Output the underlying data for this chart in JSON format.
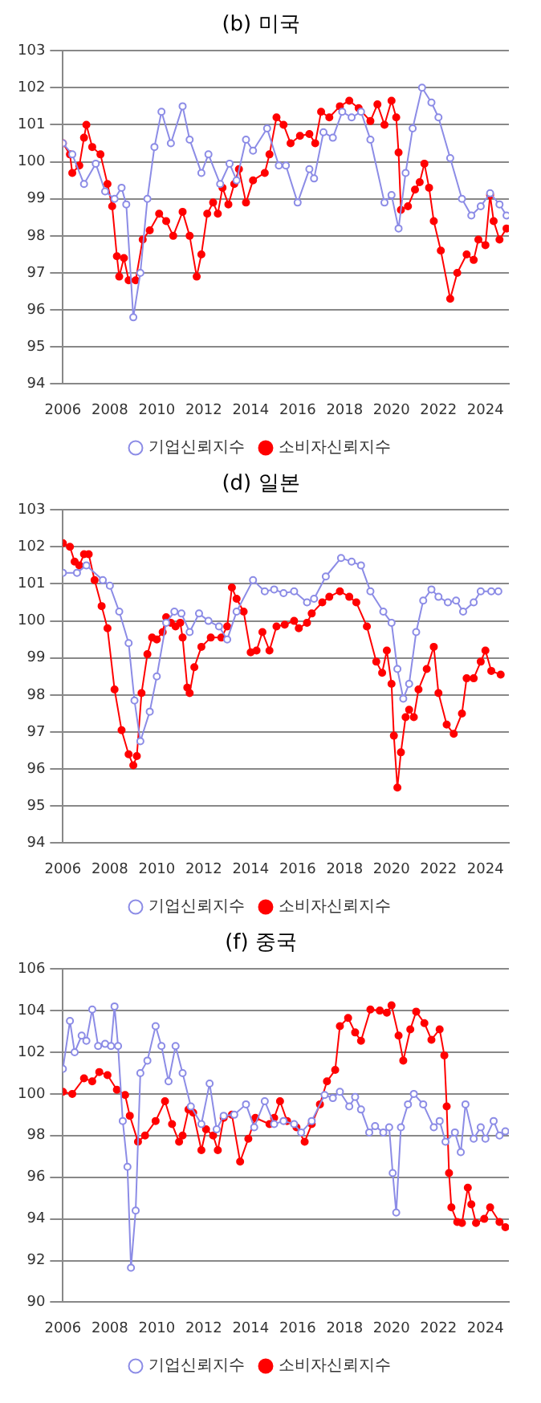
{
  "chart_data": [
    {
      "type": "line",
      "title": "(b) 미국",
      "xlim": [
        2006,
        2025
      ],
      "xticks": [
        2006,
        2008,
        2010,
        2012,
        2014,
        2016,
        2018,
        2020,
        2022,
        2024
      ],
      "ylim": [
        94,
        103
      ],
      "yticks": [
        94,
        95,
        96,
        97,
        98,
        99,
        100,
        101,
        102,
        103
      ],
      "grid": "y",
      "legend": "bottom",
      "marker": "circle",
      "line_style": "solid",
      "series": [
        {
          "name": "기업신뢰지수",
          "color": "#8c8ce6",
          "x": [
            2006.0,
            2006.4,
            2006.9,
            2007.4,
            2007.8,
            2008.2,
            2008.5,
            2008.7,
            2009.0,
            2009.3,
            2009.6,
            2009.9,
            2010.2,
            2010.6,
            2011.1,
            2011.4,
            2011.9,
            2012.2,
            2012.7,
            2013.1,
            2013.4,
            2013.8,
            2014.1,
            2014.7,
            2015.2,
            2015.5,
            2016.0,
            2016.5,
            2016.7,
            2017.1,
            2017.5,
            2017.9,
            2018.3,
            2018.7,
            2019.1,
            2019.7,
            2020.0,
            2020.3,
            2020.6,
            2020.9,
            2021.3,
            2021.7,
            2022.0,
            2022.5,
            2023.0,
            2023.4,
            2023.8,
            2024.2,
            2024.6,
            2024.9
          ],
          "values": [
            100.5,
            100.2,
            99.4,
            99.95,
            99.2,
            99.0,
            99.3,
            98.85,
            95.8,
            97.0,
            99.0,
            100.4,
            101.35,
            100.5,
            101.5,
            100.6,
            99.7,
            100.2,
            99.4,
            99.95,
            99.5,
            100.6,
            100.3,
            100.9,
            99.9,
            99.9,
            98.9,
            99.8,
            99.55,
            100.8,
            100.65,
            101.35,
            101.2,
            101.35,
            100.6,
            98.9,
            99.1,
            98.2,
            99.7,
            100.9,
            102.0,
            101.6,
            101.2,
            100.1,
            99.0,
            98.55,
            98.8,
            99.15,
            98.85,
            98.55
          ]
        },
        {
          "name": "소비자신뢰지수",
          "color": "#ff0000",
          "x": [
            2006.0,
            2006.3,
            2006.4,
            2006.7,
            2006.9,
            2007.0,
            2007.25,
            2007.6,
            2007.9,
            2008.1,
            2008.3,
            2008.4,
            2008.6,
            2008.8,
            2009.1,
            2009.4,
            2009.7,
            2010.1,
            2010.4,
            2010.7,
            2011.1,
            2011.4,
            2011.7,
            2011.9,
            2012.15,
            2012.4,
            2012.6,
            2012.8,
            2013.05,
            2013.3,
            2013.5,
            2013.8,
            2014.1,
            2014.6,
            2014.8,
            2015.1,
            2015.4,
            2015.7,
            2016.1,
            2016.5,
            2016.75,
            2017.0,
            2017.35,
            2017.8,
            2018.2,
            2018.6,
            2019.1,
            2019.4,
            2019.7,
            2020.0,
            2020.2,
            2020.3,
            2020.4,
            2020.7,
            2021.0,
            2021.2,
            2021.4,
            2021.6,
            2021.8,
            2022.1,
            2022.5,
            2022.8,
            2023.2,
            2023.5,
            2023.7,
            2024.0,
            2024.2,
            2024.35,
            2024.6,
            2024.9
          ],
          "values": [
            100.5,
            100.2,
            99.7,
            99.9,
            100.65,
            101.0,
            100.4,
            100.2,
            99.4,
            98.8,
            97.45,
            96.9,
            97.4,
            96.8,
            96.8,
            97.9,
            98.15,
            98.6,
            98.4,
            98.0,
            98.65,
            98.0,
            96.9,
            97.5,
            98.6,
            98.9,
            98.6,
            99.3,
            98.85,
            99.4,
            99.8,
            98.9,
            99.5,
            99.7,
            100.2,
            101.2,
            101.0,
            100.5,
            100.7,
            100.75,
            100.5,
            101.35,
            101.2,
            101.5,
            101.65,
            101.45,
            101.1,
            101.55,
            101.0,
            101.65,
            101.2,
            100.25,
            98.7,
            98.8,
            99.25,
            99.45,
            99.95,
            99.3,
            98.4,
            97.6,
            96.3,
            97.0,
            97.5,
            97.35,
            97.9,
            97.75,
            99.1,
            98.4,
            97.9,
            98.2
          ]
        }
      ]
    },
    {
      "type": "line",
      "title": "(d) 일본",
      "xlim": [
        2006,
        2025
      ],
      "xticks": [
        2006,
        2008,
        2010,
        2012,
        2014,
        2016,
        2018,
        2020,
        2022,
        2024
      ],
      "ylim": [
        94,
        103
      ],
      "yticks": [
        94,
        95,
        96,
        97,
        98,
        99,
        100,
        101,
        102,
        103
      ],
      "grid": "y",
      "legend": "bottom",
      "marker": "circle",
      "line_style": "solid",
      "series": [
        {
          "name": "기업신뢰지수",
          "color": "#8c8ce6",
          "x": [
            2006.0,
            2006.6,
            2007.0,
            2007.7,
            2008.0,
            2008.4,
            2008.8,
            2009.05,
            2009.3,
            2009.7,
            2010.0,
            2010.4,
            2010.75,
            2011.05,
            2011.4,
            2011.8,
            2012.2,
            2012.65,
            2013.0,
            2013.4,
            2014.1,
            2014.6,
            2015.0,
            2015.4,
            2015.85,
            2016.4,
            2016.7,
            2017.2,
            2017.85,
            2018.3,
            2018.7,
            2019.1,
            2019.65,
            2020.0,
            2020.25,
            2020.5,
            2020.75,
            2021.05,
            2021.35,
            2021.7,
            2022.0,
            2022.4,
            2022.75,
            2023.05,
            2023.5,
            2023.8,
            2024.25,
            2024.55
          ],
          "values": [
            101.3,
            101.3,
            101.5,
            101.1,
            100.95,
            100.25,
            99.4,
            97.85,
            96.75,
            97.55,
            98.5,
            99.95,
            100.25,
            100.2,
            99.7,
            100.2,
            100.0,
            99.85,
            99.5,
            100.25,
            101.1,
            100.8,
            100.85,
            100.75,
            100.8,
            100.5,
            100.6,
            101.2,
            101.7,
            101.6,
            101.5,
            100.8,
            100.25,
            99.95,
            98.7,
            97.9,
            98.3,
            99.7,
            100.55,
            100.85,
            100.65,
            100.5,
            100.55,
            100.25,
            100.5,
            100.8,
            100.8,
            100.8
          ]
        },
        {
          "name": "소비자신뢰지수",
          "color": "#ff0000",
          "x": [
            2006.0,
            2006.3,
            2006.5,
            2006.7,
            2006.9,
            2007.1,
            2007.35,
            2007.65,
            2007.9,
            2008.2,
            2008.5,
            2008.8,
            2009.0,
            2009.15,
            2009.35,
            2009.6,
            2009.8,
            2010.0,
            2010.25,
            2010.4,
            2010.6,
            2010.8,
            2011.0,
            2011.1,
            2011.3,
            2011.4,
            2011.6,
            2011.9,
            2012.3,
            2012.75,
            2013.0,
            2013.2,
            2013.4,
            2013.7,
            2014.0,
            2014.25,
            2014.5,
            2014.8,
            2015.1,
            2015.45,
            2015.85,
            2016.05,
            2016.4,
            2016.6,
            2017.05,
            2017.35,
            2017.8,
            2018.2,
            2018.5,
            2018.95,
            2019.35,
            2019.6,
            2019.8,
            2020.0,
            2020.1,
            2020.25,
            2020.4,
            2020.6,
            2020.75,
            2020.95,
            2021.15,
            2021.5,
            2021.8,
            2022.0,
            2022.35,
            2022.65,
            2023.0,
            2023.2,
            2023.5,
            2023.8,
            2024.0,
            2024.25,
            2024.65
          ],
          "values": [
            102.1,
            102.0,
            101.6,
            101.5,
            101.8,
            101.8,
            101.1,
            100.4,
            99.8,
            98.15,
            97.05,
            96.4,
            96.1,
            96.35,
            98.05,
            99.1,
            99.55,
            99.5,
            99.7,
            100.1,
            99.95,
            99.85,
            99.95,
            99.55,
            98.2,
            98.05,
            98.75,
            99.3,
            99.55,
            99.55,
            99.85,
            100.9,
            100.6,
            100.25,
            99.15,
            99.2,
            99.7,
            99.2,
            99.85,
            99.9,
            100.0,
            99.8,
            99.95,
            100.2,
            100.5,
            100.65,
            100.8,
            100.65,
            100.5,
            99.85,
            98.9,
            98.6,
            99.2,
            98.3,
            96.9,
            95.5,
            96.45,
            97.4,
            97.6,
            97.4,
            98.15,
            98.7,
            99.3,
            98.05,
            97.2,
            96.95,
            97.5,
            98.45,
            98.45,
            98.9,
            99.2,
            98.65,
            98.55
          ]
        }
      ]
    },
    {
      "type": "line",
      "title": "(f) 중국",
      "xlim": [
        2006,
        2025
      ],
      "xticks": [
        2006,
        2008,
        2010,
        2012,
        2014,
        2016,
        2018,
        2020,
        2022,
        2024
      ],
      "ylim": [
        90,
        106
      ],
      "yticks": [
        90,
        92,
        94,
        96,
        98,
        100,
        102,
        104,
        106
      ],
      "grid": "y",
      "legend": "bottom",
      "marker": "circle",
      "line_style": "solid",
      "series": [
        {
          "name": "기업신뢰지수",
          "color": "#8c8ce6",
          "x": [
            2006.0,
            2006.3,
            2006.5,
            2006.8,
            2007.0,
            2007.25,
            2007.5,
            2007.8,
            2008.05,
            2008.2,
            2008.35,
            2008.55,
            2008.75,
            2008.9,
            2009.1,
            2009.3,
            2009.6,
            2009.95,
            2010.2,
            2010.5,
            2010.8,
            2011.1,
            2011.45,
            2011.9,
            2012.25,
            2012.55,
            2012.85,
            2013.3,
            2013.8,
            2014.15,
            2014.6,
            2015.0,
            2015.4,
            2015.85,
            2016.15,
            2016.6,
            2017.15,
            2017.5,
            2017.8,
            2018.2,
            2018.45,
            2018.7,
            2019.05,
            2019.3,
            2019.65,
            2019.9,
            2020.05,
            2020.2,
            2020.4,
            2020.7,
            2020.95,
            2021.35,
            2021.8,
            2022.05,
            2022.3,
            2022.7,
            2022.95,
            2023.15,
            2023.5,
            2023.8,
            2024.0,
            2024.35,
            2024.6,
            2024.85
          ],
          "values": [
            101.2,
            103.5,
            102.0,
            102.8,
            102.55,
            104.05,
            102.3,
            102.4,
            102.3,
            104.2,
            102.3,
            98.7,
            96.5,
            91.65,
            94.4,
            101.0,
            101.6,
            103.25,
            102.3,
            100.6,
            102.3,
            101.0,
            99.4,
            98.55,
            100.5,
            98.3,
            98.95,
            99.0,
            99.5,
            98.4,
            99.65,
            98.55,
            98.7,
            98.55,
            98.15,
            98.7,
            99.95,
            99.8,
            100.1,
            99.4,
            99.85,
            99.25,
            98.15,
            98.45,
            98.15,
            98.4,
            96.2,
            94.3,
            98.4,
            99.5,
            100.0,
            99.5,
            98.4,
            98.7,
            97.7,
            98.15,
            97.2,
            99.5,
            97.85,
            98.4,
            97.85,
            98.7,
            98.0,
            98.2
          ]
        },
        {
          "name": "소비자신뢰지수",
          "color": "#ff0000",
          "x": [
            2006.0,
            2006.4,
            2006.9,
            2007.25,
            2007.55,
            2007.9,
            2008.3,
            2008.65,
            2008.85,
            2009.2,
            2009.5,
            2009.95,
            2010.35,
            2010.65,
            2010.95,
            2011.1,
            2011.35,
            2011.55,
            2011.9,
            2012.1,
            2012.4,
            2012.6,
            2012.85,
            2013.2,
            2013.55,
            2013.9,
            2014.2,
            2014.8,
            2015.0,
            2015.25,
            2015.55,
            2015.95,
            2016.3,
            2016.6,
            2016.95,
            2017.25,
            2017.6,
            2017.8,
            2018.15,
            2018.45,
            2018.7,
            2019.1,
            2019.5,
            2019.8,
            2020.0,
            2020.3,
            2020.5,
            2020.8,
            2021.05,
            2021.4,
            2021.7,
            2022.05,
            2022.25,
            2022.35,
            2022.45,
            2022.55,
            2022.8,
            2023.0,
            2023.25,
            2023.4,
            2023.6,
            2023.95,
            2024.2,
            2024.6,
            2024.85
          ],
          "values": [
            100.1,
            100.0,
            100.75,
            100.6,
            101.05,
            100.9,
            100.2,
            99.95,
            98.95,
            97.7,
            98.0,
            98.7,
            99.65,
            98.55,
            97.7,
            98.0,
            99.25,
            99.1,
            97.3,
            98.3,
            98.0,
            97.3,
            98.85,
            99.0,
            96.75,
            97.85,
            98.85,
            98.55,
            98.85,
            99.65,
            98.7,
            98.4,
            97.7,
            98.55,
            99.5,
            100.6,
            101.15,
            103.25,
            103.65,
            102.95,
            102.55,
            104.05,
            104.0,
            103.9,
            104.25,
            102.8,
            101.6,
            103.1,
            103.95,
            103.4,
            102.6,
            103.1,
            101.85,
            99.4,
            96.2,
            94.55,
            93.85,
            93.8,
            95.5,
            94.7,
            93.8,
            94.0,
            94.55,
            93.85,
            93.6
          ]
        }
      ]
    }
  ]
}
